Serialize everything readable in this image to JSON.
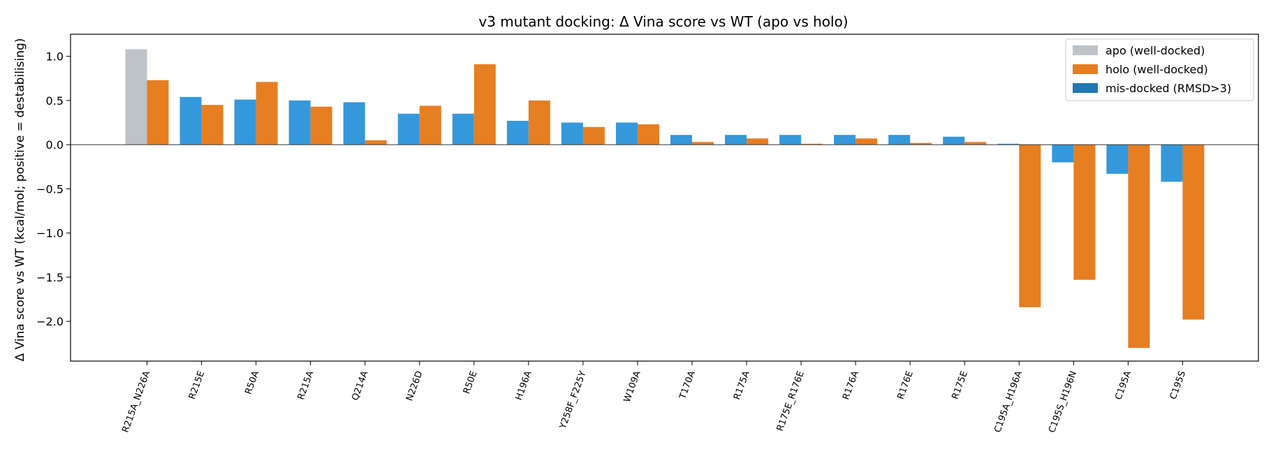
{
  "chart_data": {
    "type": "bar",
    "title": "v3 mutant docking: Δ Vina score vs WT (apo vs holo)",
    "xlabel": "",
    "ylabel": "Δ Vina score vs WT (kcal/mol; positive = destabilising)",
    "ylim": [
      -2.45,
      1.25
    ],
    "yticks": [
      -2.0,
      -1.5,
      -1.0,
      -0.5,
      0.0,
      0.5,
      1.0
    ],
    "ytick_labels": [
      "−2.0",
      "−1.5",
      "−1.0",
      "−0.5",
      "0.0",
      "0.5",
      "1.0"
    ],
    "grid": false,
    "legend_position": "top-right",
    "categories": [
      "R215A_N226A",
      "R215E",
      "R50A",
      "R215A",
      "Q214A",
      "N226D",
      "R50E",
      "H196A",
      "Y258F_F225Y",
      "W109A",
      "T170A",
      "R175A",
      "R175E_R176E",
      "R176A",
      "R176E",
      "R175E",
      "C195A_H196A",
      "C195S_H196N",
      "C195A",
      "C195S"
    ],
    "series": [
      {
        "name": "apo",
        "values": [
          1.08,
          0.54,
          0.51,
          0.5,
          0.48,
          0.35,
          0.35,
          0.27,
          0.25,
          0.25,
          0.11,
          0.11,
          0.11,
          0.11,
          0.11,
          0.09,
          0.01,
          -0.2,
          -0.33,
          -0.42
        ],
        "docking_status": [
          "well-docked",
          "mis-docked",
          "mis-docked",
          "mis-docked",
          "mis-docked",
          "mis-docked",
          "mis-docked",
          "mis-docked",
          "mis-docked",
          "mis-docked",
          "mis-docked",
          "mis-docked",
          "mis-docked",
          "mis-docked",
          "mis-docked",
          "mis-docked",
          "mis-docked",
          "mis-docked",
          "mis-docked",
          "mis-docked"
        ]
      },
      {
        "name": "holo",
        "values": [
          0.73,
          0.45,
          0.71,
          0.43,
          0.05,
          0.44,
          0.91,
          0.5,
          0.2,
          0.23,
          0.03,
          0.07,
          0.01,
          0.07,
          0.02,
          0.03,
          -1.84,
          -1.53,
          -2.3,
          -1.98
        ],
        "docking_status": [
          "well-docked",
          "well-docked",
          "well-docked",
          "well-docked",
          "well-docked",
          "well-docked",
          "well-docked",
          "well-docked",
          "well-docked",
          "well-docked",
          "well-docked",
          "well-docked",
          "well-docked",
          "well-docked",
          "well-docked",
          "well-docked",
          "well-docked",
          "well-docked",
          "well-docked",
          "well-docked"
        ]
      }
    ],
    "legend": [
      {
        "label": "apo (well-docked)",
        "color": "#bdc3c7"
      },
      {
        "label": "holo (well-docked)",
        "color": "#e67e22"
      },
      {
        "label": "mis-docked (RMSD>3)",
        "color": "#1f77b4"
      }
    ],
    "colors": {
      "apo_well_docked": "#bdc3c7",
      "holo_well_docked": "#e67e22",
      "apo_mis_docked_bar": "#3498db",
      "mis_docked_legend": "#1f77b4"
    }
  }
}
